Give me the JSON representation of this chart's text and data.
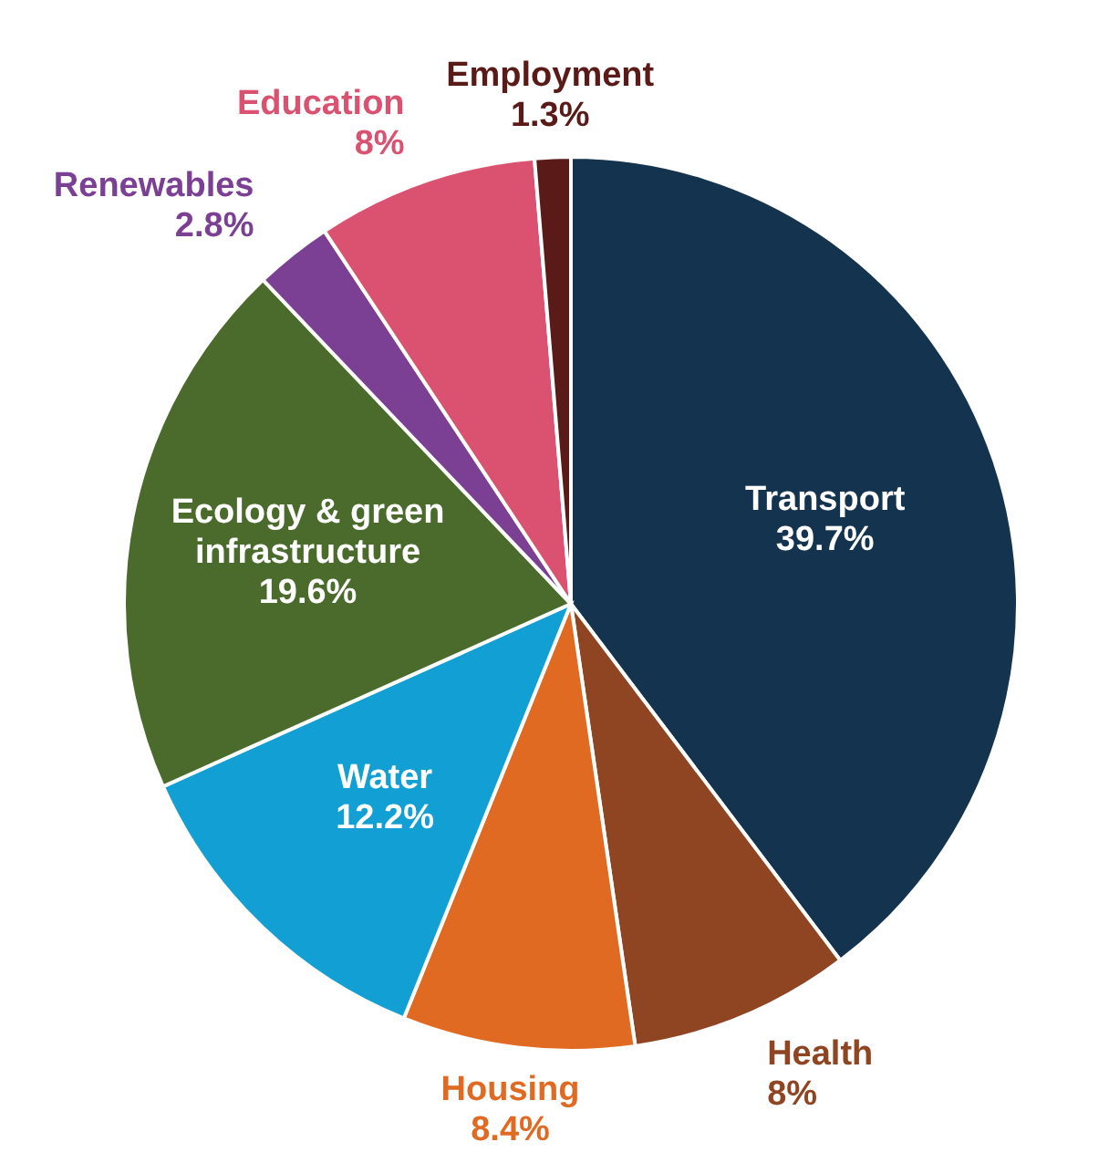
{
  "chart_data": {
    "type": "pie",
    "categories": [
      "Transport",
      "Health",
      "Housing",
      "Water",
      "Ecology & green infrastructure",
      "Renewables",
      "Education",
      "Employment"
    ],
    "values": [
      39.7,
      8,
      8.4,
      12.2,
      19.6,
      2.8,
      8,
      1.3
    ],
    "value_labels": [
      "39.7%",
      "8%",
      "8.4%",
      "12.2%",
      "19.6%",
      "2.8%",
      "8%",
      "1.3%"
    ],
    "colors": [
      "#13334f",
      "#8f4522",
      "#e06a22",
      "#12a0d4",
      "#4a6b2b",
      "#7b3f94",
      "#db5270",
      "#5a1a18"
    ]
  }
}
